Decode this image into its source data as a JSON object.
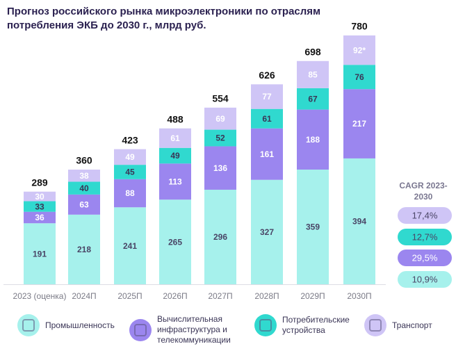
{
  "chart_data": {
    "type": "stacked-bar",
    "title": "Прогноз российского рынка микроэлектроники по отраслям потребления ЭКБ до 2030 г., млрд руб.",
    "categories": [
      "2023 (оценка)",
      "2024П",
      "2025П",
      "2026П",
      "2027П",
      "2028П",
      "2029П",
      "2030П"
    ],
    "totals": [
      289,
      360,
      423,
      488,
      554,
      626,
      698,
      780
    ],
    "cagr_title": "CAGR 2023-2030",
    "series": [
      {
        "name": "Промышленность",
        "color": "#a6f1ec",
        "values": [
          191,
          218,
          241,
          265,
          296,
          327,
          359,
          394
        ],
        "cagr": "10,9%"
      },
      {
        "name": "Вычислительная инфраструктура и телекоммуникации",
        "color": "#9b86ef",
        "values": [
          36,
          63,
          88,
          113,
          136,
          161,
          188,
          217
        ],
        "cagr": "29,5%"
      },
      {
        "name": "Потребительские устройства",
        "color": "#30d9cf",
        "values": [
          33,
          40,
          45,
          49,
          52,
          61,
          67,
          76
        ],
        "cagr": "12,7%"
      },
      {
        "name": "Транспорт",
        "color": "#cfc5f6",
        "values": [
          30,
          38,
          49,
          61,
          69,
          77,
          85,
          92
        ],
        "value_labels": [
          "30",
          "38",
          "49",
          "61",
          "69",
          "77",
          "85",
          "92*"
        ],
        "cagr": "17,4%"
      }
    ]
  }
}
